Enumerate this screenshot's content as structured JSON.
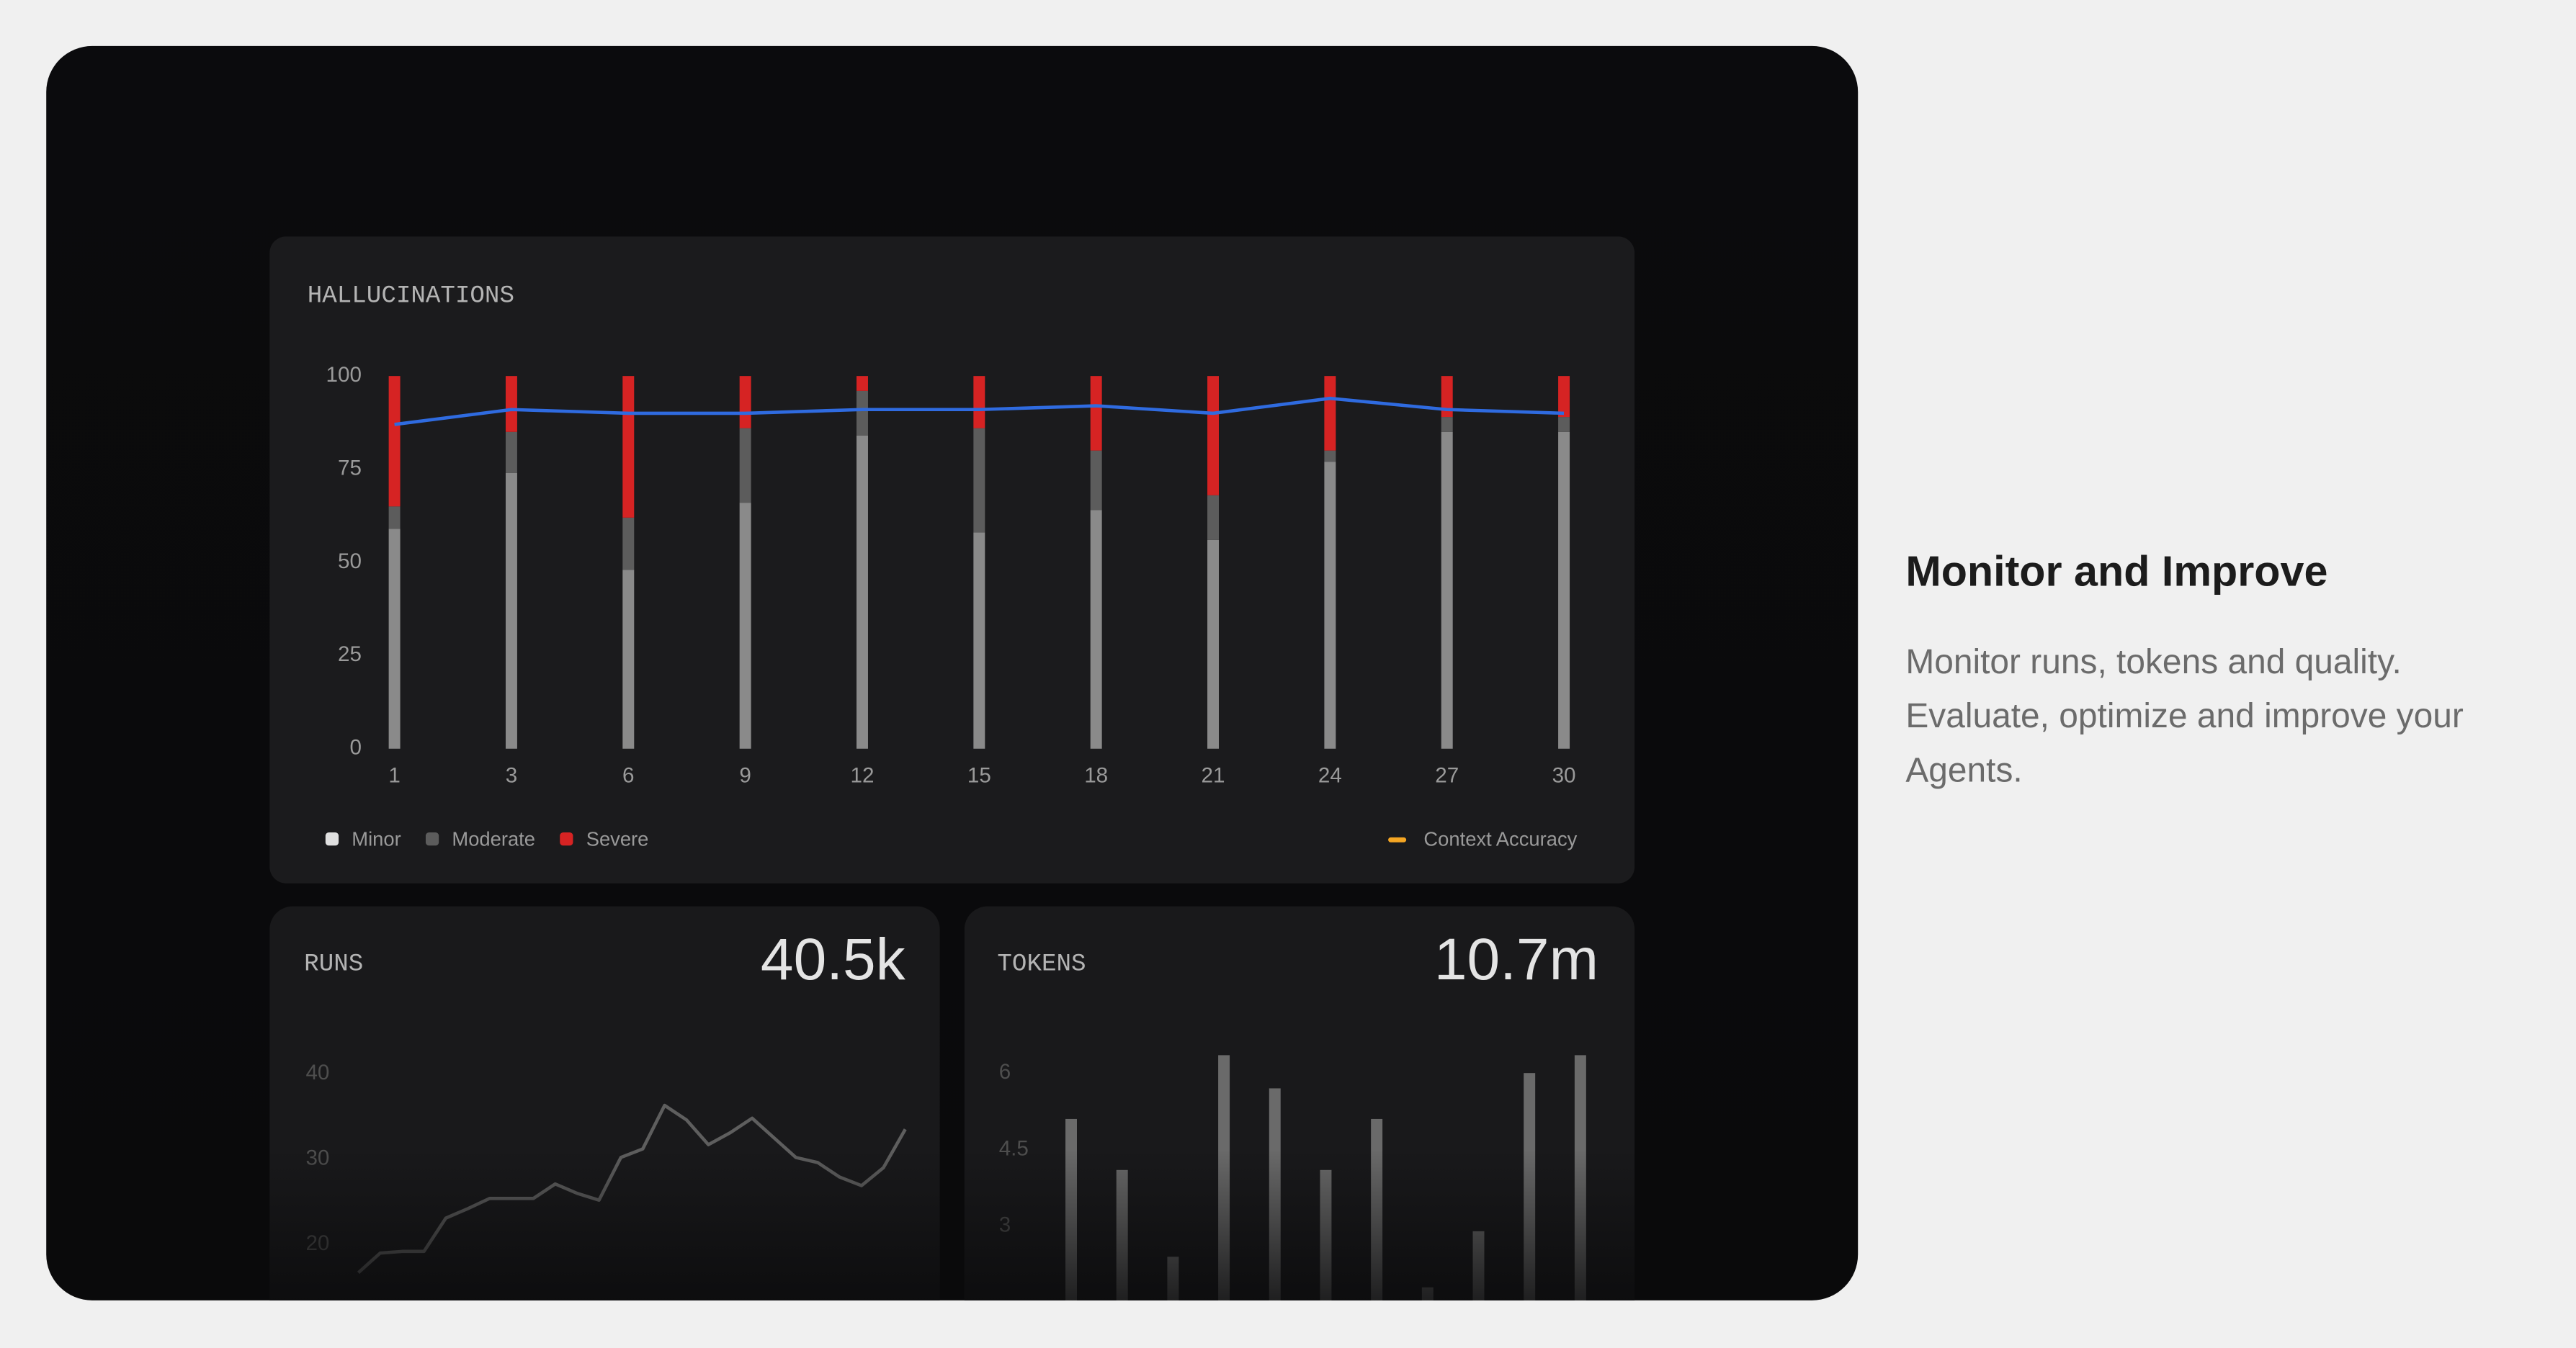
{
  "heading": "Monitor and Improve",
  "description": "Monitor runs, tokens and quality. Evaluate, optimize and improve your Agents.",
  "chart_data": [
    {
      "type": "bar",
      "stacked": true,
      "title": "HALLUCINATIONS",
      "categories": [
        "1",
        "3",
        "6",
        "9",
        "12",
        "15",
        "18",
        "21",
        "24",
        "27",
        "30"
      ],
      "ylim": [
        0,
        100
      ],
      "yticks": [
        0,
        25,
        50,
        75,
        100
      ],
      "legend": "bottom",
      "series": [
        {
          "name": "Minor",
          "color": "#8a8a8a",
          "legend_color": "#e0e0e0",
          "values": [
            59,
            74,
            48,
            66,
            84,
            58,
            64,
            56,
            77,
            85,
            85
          ]
        },
        {
          "name": "Moderate",
          "color": "#5c5c5c",
          "values": [
            6,
            11,
            14,
            20,
            12,
            28,
            16,
            12,
            3,
            4,
            4
          ]
        },
        {
          "name": "Severe",
          "color": "#d62323",
          "values": [
            35,
            15,
            38,
            14,
            4,
            14,
            20,
            32,
            20,
            11,
            11
          ]
        },
        {
          "name": "Context Accuracy",
          "type": "line",
          "color": "#2f6be0",
          "legend_color": "#f5a623",
          "values": [
            87,
            91,
            90,
            90,
            91,
            91,
            92,
            90,
            94,
            91,
            90
          ]
        }
      ]
    },
    {
      "type": "line",
      "title": "RUNS",
      "total": "40.5k",
      "color": "#5e5e5e",
      "ylim": [
        10,
        45
      ],
      "yticks": [
        20,
        30,
        40
      ],
      "values": [
        16.7,
        19.0,
        19.2,
        19.2,
        23.1,
        24.2,
        25.4,
        25.4,
        25.4,
        27.1,
        26.0,
        25.2,
        30.2,
        31.2,
        36.3,
        34.6,
        31.7,
        33.1,
        34.8,
        32.5,
        30.2,
        29.6,
        27.9,
        26.9,
        29.0,
        33.5
      ]
    },
    {
      "type": "bar",
      "title": "TOKENS",
      "total": "10.7m",
      "color": "#6a6a6a",
      "ylim": [
        0,
        6.5
      ],
      "yticks": [
        3,
        4.5,
        6
      ],
      "values": [
        5.1,
        4.1,
        2.4,
        6.35,
        5.7,
        4.1,
        5.1,
        1.8,
        2.9,
        6.0,
        6.35
      ]
    }
  ]
}
